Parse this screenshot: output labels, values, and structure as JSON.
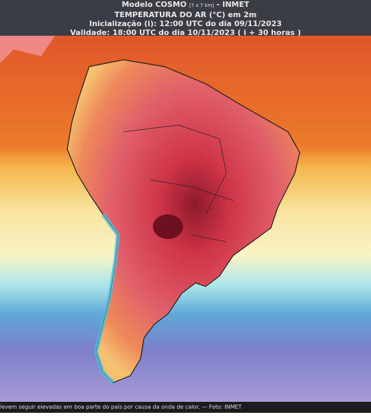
{
  "header": {
    "model": "Modelo COSMO",
    "resolution": "[7 x 7 km]",
    "agency": "- INMET",
    "title": "TEMPERATURA DO AR (°C) em 2m",
    "initialization": "Inicialização (i): 12:00 UTC do dia 09/11/2023",
    "validity": "Validade: 18:00 UTC do dia 10/11/2023 ( i + 30 horas )"
  },
  "caption": "levem seguir elevadas em boa parte do país por causa da onda de calor. — Foto: INMET"
}
